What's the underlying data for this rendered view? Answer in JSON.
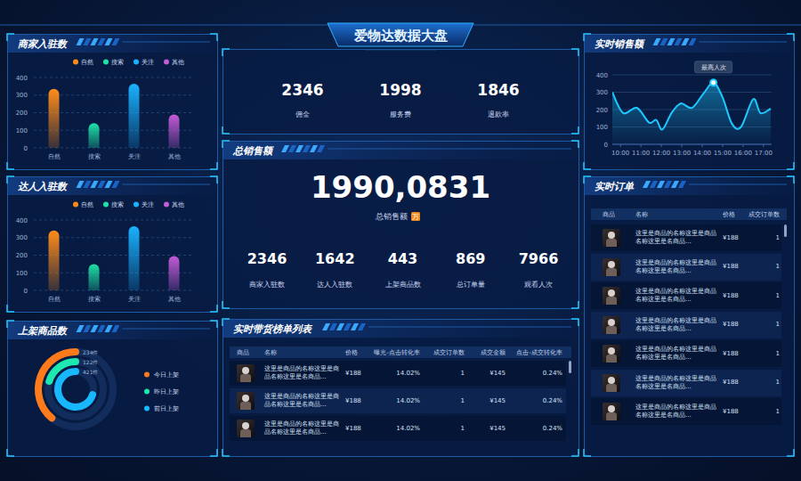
{
  "header": {
    "title": "爱物达数据大盘"
  },
  "chart_data": [
    {
      "type": "bar",
      "title": "商家入驻数",
      "categories": [
        "自然",
        "搜索",
        "关注",
        "其他"
      ],
      "values": [
        335,
        140,
        365,
        190
      ],
      "colors": [
        "#ff8c1a",
        "#1fe0a6",
        "#1ab2ff",
        "#c35bd6"
      ],
      "ylim": [
        0,
        400
      ],
      "yticks": [
        0,
        100,
        200,
        300,
        400
      ],
      "grid": true,
      "legend": "top-right"
    },
    {
      "type": "bar",
      "title": "达人入驻数",
      "categories": [
        "自然",
        "搜索",
        "关注",
        "其他"
      ],
      "values": [
        340,
        150,
        365,
        195
      ],
      "colors": [
        "#ff8c1a",
        "#1fe0a6",
        "#1ab2ff",
        "#c35bd6"
      ],
      "ylim": [
        0,
        400
      ],
      "yticks": [
        0,
        100,
        200,
        300,
        400
      ],
      "grid": true,
      "legend": "top-right"
    },
    {
      "type": "radial_bar",
      "title": "上架商品数",
      "categories": [
        "今日上架",
        "昨日上架",
        "前日上架"
      ],
      "values": [
        234,
        122,
        421
      ],
      "value_labels": [
        "234件",
        "122件",
        "421件"
      ],
      "colors": [
        "#ff7a1a",
        "#1de8b0",
        "#18b8ff"
      ],
      "ylim": [
        0,
        600
      ],
      "legend": "right"
    },
    {
      "type": "line",
      "title": "实时销售额",
      "x": [
        9.6,
        10.13,
        10.8,
        11.4,
        11.75,
        12.05,
        12.5,
        12.95,
        13.5,
        14.05,
        14.55,
        15.0,
        15.45,
        15.9,
        16.5,
        16.85,
        17.35
      ],
      "values": [
        300,
        180,
        210,
        125,
        140,
        85,
        180,
        235,
        210,
        290,
        355,
        270,
        120,
        100,
        260,
        180,
        205
      ],
      "xlim": [
        9.6,
        17.4
      ],
      "xticks": [
        {
          "value": 10,
          "label": "10:00"
        },
        {
          "value": 11,
          "label": "11:00"
        },
        {
          "value": 12,
          "label": "12:00"
        },
        {
          "value": 13,
          "label": "13:00"
        },
        {
          "value": 14,
          "label": "14:00"
        },
        {
          "value": 15,
          "label": "15:00"
        },
        {
          "value": 16,
          "label": "16:00"
        },
        {
          "value": 17,
          "label": "17:00"
        }
      ],
      "ylim": [
        0,
        400
      ],
      "yticks": [
        0,
        100,
        200,
        300,
        400
      ],
      "grid": true,
      "color": "#1ec8ff",
      "annotations": [
        "最高人次"
      ]
    }
  ],
  "kpi_top": {
    "items": [
      {
        "value": 2346,
        "label": "佣金"
      },
      {
        "value": 1998,
        "label": "服务费"
      },
      {
        "value": 1846,
        "label": "退款率"
      }
    ]
  },
  "total_sales": {
    "title": "总销售额",
    "amount": "1990,0831",
    "label": "总销售额",
    "unit": "万",
    "items": [
      {
        "value": 2346,
        "label": "商家入驻数"
      },
      {
        "value": 1642,
        "label": "达人入驻数"
      },
      {
        "value": 443,
        "label": "上架商品数"
      },
      {
        "value": 869,
        "label": "总订单量"
      },
      {
        "value": 7966,
        "label": "观看人次"
      }
    ]
  },
  "live_list": {
    "title": "实时带货榜单列表",
    "columns": [
      "商品",
      "名称",
      "价格",
      "曝光-点击转化率",
      "成交订单数",
      "成交金额",
      "点击-成交转化率"
    ],
    "rows": [
      [
        "这里是商品的名称这里是商品名称这里是名商品...",
        "¥188",
        "14.02%",
        "1",
        "¥145",
        "0.24%"
      ],
      [
        "这里是商品的名称这里是商品名称这里是名商品...",
        "¥188",
        "14.02%",
        "1",
        "¥145",
        "0.24%"
      ],
      [
        "这里是商品的名称这里是商品名称这里是名商品...",
        "¥188",
        "14.02%",
        "1",
        "¥145",
        "0.24%"
      ]
    ]
  },
  "orders": {
    "title": "实时订单",
    "columns": [
      "商品",
      "名称",
      "价格",
      "成交订单数"
    ],
    "rows": [
      [
        "这里是商品的名称这里是商品名称这里是名商品...",
        "¥188",
        "1"
      ],
      [
        "这里是商品的名称这里是商品名称这里是名商品...",
        "¥188",
        "1"
      ],
      [
        "这里是商品的名称这里是商品名称这里是名商品...",
        "¥188",
        "1"
      ],
      [
        "这里是商品的名称这里是商品名称这里是名商品...",
        "¥188",
        "1"
      ],
      [
        "这里是商品的名称这里是商品名称这里是名商品...",
        "¥188",
        "1"
      ],
      [
        "这里是商品的名称这里是商品名称这里是名商品...",
        "¥188",
        "1"
      ],
      [
        "这里是商品的名称这里是商品名称这里是名商品...",
        "¥188",
        "1"
      ]
    ]
  }
}
